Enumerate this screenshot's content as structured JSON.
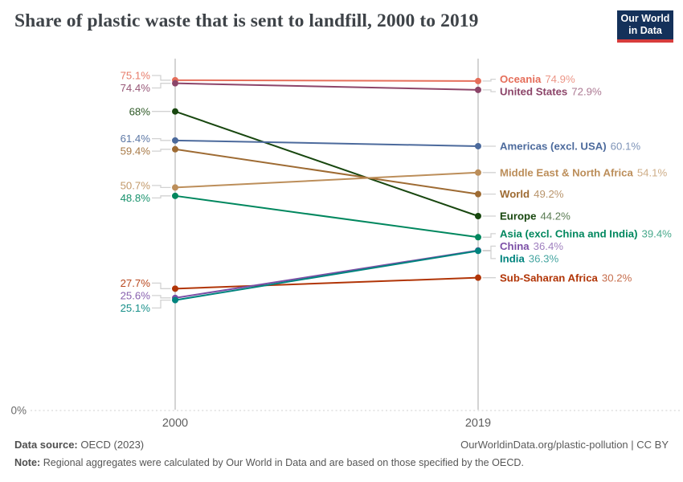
{
  "header": {
    "title": "Share of plastic waste that is sent to landfill, 2000 to 2019",
    "logo": {
      "line1": "Our World",
      "line2": "in Data",
      "bg": "#14315A",
      "accent": "#D73C3C"
    }
  },
  "chart_data": {
    "type": "line",
    "subtype": "slope",
    "title": "Share of plastic waste that is sent to landfill, 2000 to 2019",
    "x": [
      2000,
      2019
    ],
    "x_labels": [
      "2000",
      "2019"
    ],
    "ylim": [
      0,
      80
    ],
    "baseline_label": "0%",
    "grid": "baseline-dotted-only",
    "legend_position": "right-inline-labels",
    "series": [
      {
        "name": "Oceania",
        "values": [
          75.1,
          74.9
        ],
        "labels": [
          "75.1%",
          "74.9%"
        ],
        "color": "#E56E5A"
      },
      {
        "name": "United States",
        "values": [
          74.4,
          72.9
        ],
        "labels": [
          "74.4%",
          "72.9%"
        ],
        "color": "#8C4569"
      },
      {
        "name": "Europe",
        "values": [
          68.0,
          44.2
        ],
        "labels": [
          "68%",
          "44.2%"
        ],
        "color": "#18470F"
      },
      {
        "name": "Americas (excl. USA)",
        "values": [
          61.4,
          60.1
        ],
        "labels": [
          "61.4%",
          "60.1%"
        ],
        "color": "#4C6A9C"
      },
      {
        "name": "World",
        "values": [
          59.4,
          49.2
        ],
        "labels": [
          "59.4%",
          "49.2%"
        ],
        "color": "#9E6B33"
      },
      {
        "name": "Middle East & North Africa",
        "values": [
          50.7,
          54.1
        ],
        "labels": [
          "50.7%",
          "54.1%"
        ],
        "color": "#BC8E5A"
      },
      {
        "name": "Asia (excl. China and India)",
        "values": [
          48.8,
          39.4
        ],
        "labels": [
          "48.8%",
          "39.4%"
        ],
        "color": "#00875E"
      },
      {
        "name": "Sub-Saharan Africa",
        "values": [
          27.7,
          30.2
        ],
        "labels": [
          "27.7%",
          "30.2%"
        ],
        "color": "#B13507"
      },
      {
        "name": "China",
        "values": [
          25.6,
          36.4
        ],
        "labels": [
          "25.6%",
          "36.4%"
        ],
        "color": "#7B4FA6"
      },
      {
        "name": "India",
        "values": [
          25.1,
          36.3
        ],
        "labels": [
          "25.1%",
          "36.3%"
        ],
        "color": "#00847E"
      }
    ]
  },
  "footer": {
    "source_label": "Data source:",
    "source_value": "OECD (2023)",
    "credit": "OurWorldinData.org/plastic-pollution | CC BY",
    "note_label": "Note:",
    "note_value": "Regional aggregates were calculated by Our World in Data and are based on those specified by the OECD."
  }
}
